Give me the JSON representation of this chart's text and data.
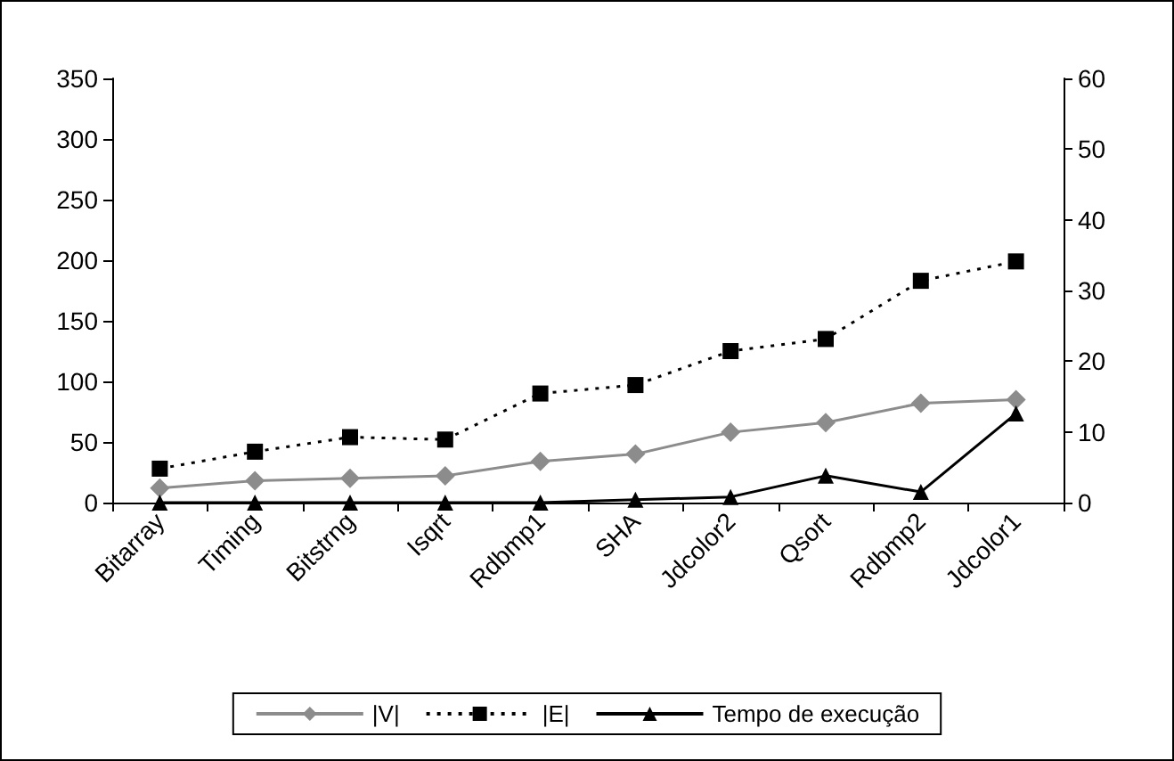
{
  "chart_data": {
    "type": "line",
    "categories": [
      "Bitarray",
      "Timing",
      "Bitstrng",
      "Isqrt",
      "Rdbmp1",
      "SHA",
      "Jdcolor2",
      "Qsort",
      "Rdbmp2",
      "Jdcolor1"
    ],
    "series": [
      {
        "name": "|V|",
        "color": "#8c8c8c",
        "marker": "diamond",
        "line_style": "solid",
        "values": [
          12,
          18,
          20,
          22,
          34,
          40,
          58,
          66,
          82,
          85
        ]
      },
      {
        "name": "|E|",
        "color": "#000000",
        "marker": "square",
        "line_style": "dotted",
        "values": [
          28,
          42,
          54,
          52,
          90,
          97,
          125,
          135,
          183,
          199
        ]
      },
      {
        "name": "Tempo de execução",
        "color": "#000000",
        "marker": "triangle",
        "line_style": "solid",
        "axis": "y2",
        "values": [
          0,
          0,
          0,
          0,
          0,
          0.4,
          0.8,
          3.8,
          1.5,
          12.6
        ]
      }
    ],
    "ylim": [
      0,
      350
    ],
    "yticks": [
      0,
      50,
      100,
      150,
      200,
      250,
      300,
      350
    ],
    "y2lim": [
      0,
      60
    ],
    "y2ticks": [
      0,
      10,
      20,
      30,
      40,
      50,
      60
    ],
    "grid": false,
    "legend": "bottom"
  }
}
